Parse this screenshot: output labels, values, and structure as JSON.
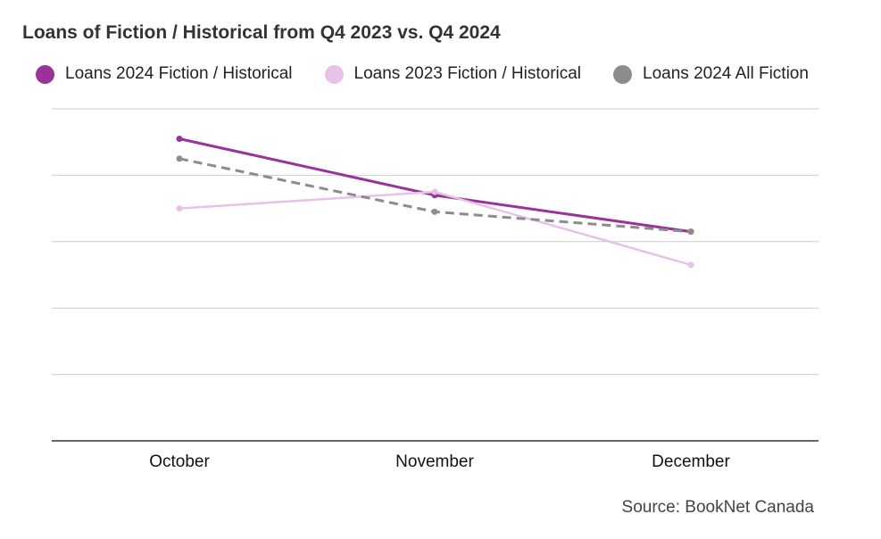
{
  "chart_data": {
    "type": "line",
    "title": "Loans of Fiction / Historical from Q4 2023 vs. Q4 2024",
    "categories": [
      "October",
      "November",
      "December"
    ],
    "ylim": [
      0,
      5
    ],
    "grid": true,
    "legend_position": "top",
    "series": [
      {
        "name": "Loans 2024 Fiction / Historical",
        "values": [
          4.55,
          3.7,
          3.15
        ],
        "color": "#993399",
        "style": "solid",
        "width": 3
      },
      {
        "name": "Loans 2023 Fiction / Historical",
        "values": [
          3.5,
          3.75,
          2.65
        ],
        "color": "#e6c3e6",
        "style": "solid",
        "width": 2.5
      },
      {
        "name": "Loans 2024 All Fiction",
        "values": [
          4.25,
          3.45,
          3.15
        ],
        "color": "#8c8c8c",
        "style": "dashed",
        "width": 3
      }
    ]
  },
  "source": "Source: BookNet Canada"
}
